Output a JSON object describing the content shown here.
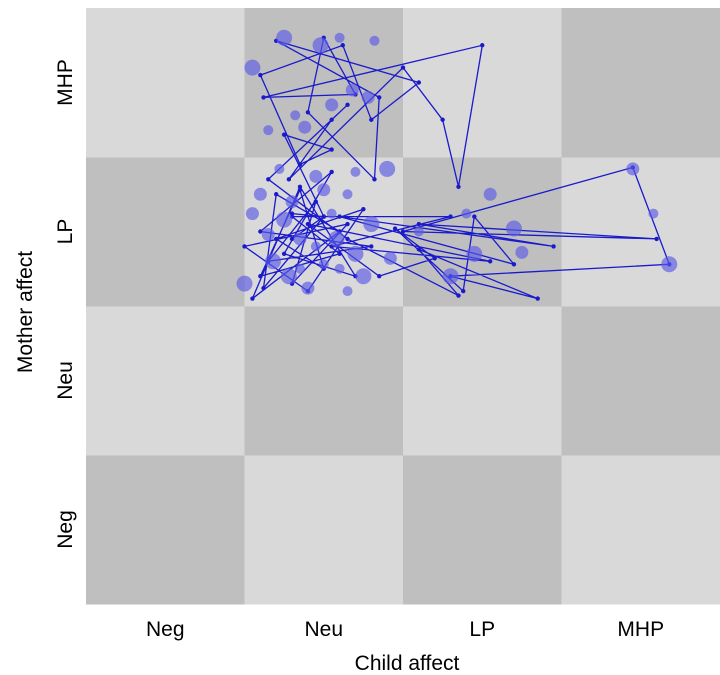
{
  "chart_data": {
    "type": "state-space-grid",
    "xlabel": "Child affect",
    "ylabel": "Mother affect",
    "x_categories": [
      "Neg",
      "Neu",
      "LP",
      "MHP"
    ],
    "y_categories": [
      "Neg",
      "Neu",
      "LP",
      "MHP"
    ],
    "xlim": [
      0,
      4
    ],
    "ylim": [
      0,
      4
    ],
    "grid": "checkerboard",
    "colors": {
      "cell_light": "#d9d9d9",
      "cell_dark": "#bfbfbf",
      "trajectory": "#1a1acc",
      "node": "#5a5ae6"
    },
    "trajectory": [
      [
        1.3,
        2.62
      ],
      [
        1.5,
        2.6
      ],
      [
        1.12,
        2.12
      ],
      [
        1.2,
        2.75
      ],
      [
        1.6,
        2.5
      ],
      [
        1.05,
        2.05
      ],
      [
        1.35,
        2.8
      ],
      [
        1.7,
        2.2
      ],
      [
        1.25,
        2.35
      ],
      [
        1.55,
        2.9
      ],
      [
        1.1,
        2.5
      ],
      [
        1.8,
        2.4
      ],
      [
        1.15,
        2.3
      ],
      [
        1.45,
        2.7
      ],
      [
        1.3,
        2.15
      ],
      [
        1.65,
        2.55
      ],
      [
        1.0,
        2.4
      ],
      [
        1.4,
        2.1
      ],
      [
        1.75,
        2.65
      ],
      [
        1.2,
        2.45
      ],
      [
        1.5,
        2.25
      ],
      [
        1.35,
        2.78
      ],
      [
        1.1,
        2.2
      ],
      [
        1.6,
        2.35
      ],
      [
        1.3,
        2.6
      ],
      [
        2.3,
        2.6
      ],
      [
        1.55,
        2.4
      ],
      [
        2.55,
        2.3
      ],
      [
        1.4,
        2.55
      ],
      [
        1.85,
        2.2
      ],
      [
        2.2,
        2.32
      ],
      [
        1.95,
        2.52
      ],
      [
        2.38,
        2.1
      ],
      [
        2.45,
        2.6
      ],
      [
        2.7,
        2.28
      ],
      [
        1.6,
        2.6
      ],
      [
        2.95,
        2.4
      ],
      [
        2.1,
        2.55
      ],
      [
        3.6,
        2.45
      ],
      [
        2.0,
        2.5
      ],
      [
        3.45,
        2.93
      ],
      [
        3.68,
        2.28
      ],
      [
        2.3,
        2.2
      ],
      [
        2.85,
        2.05
      ],
      [
        2.1,
        2.38
      ],
      [
        2.35,
        2.07
      ],
      [
        1.65,
        2.45
      ],
      [
        1.15,
        2.85
      ],
      [
        1.65,
        3.35
      ],
      [
        1.55,
        3.25
      ],
      [
        1.28,
        2.85
      ],
      [
        2.0,
        3.6
      ],
      [
        2.25,
        3.25
      ],
      [
        2.35,
        2.8
      ],
      [
        2.5,
        3.75
      ],
      [
        1.12,
        3.4
      ],
      [
        1.7,
        3.42
      ],
      [
        1.5,
        3.8
      ],
      [
        1.4,
        3.3
      ],
      [
        1.82,
        2.85
      ],
      [
        1.85,
        3.4
      ],
      [
        1.2,
        3.78
      ],
      [
        2.1,
        3.5
      ],
      [
        1.8,
        3.25
      ],
      [
        1.62,
        3.75
      ],
      [
        1.1,
        3.55
      ],
      [
        1.35,
        2.95
      ],
      [
        1.55,
        3.05
      ],
      [
        1.25,
        3.15
      ],
      [
        1.5,
        2.6
      ],
      [
        1.3,
        2.45
      ]
    ],
    "nodes": [
      [
        1.22,
        2.92
      ],
      [
        1.45,
        2.87
      ],
      [
        1.18,
        2.3
      ],
      [
        1.5,
        2.28
      ],
      [
        1.35,
        2.45
      ],
      [
        1.28,
        2.2
      ],
      [
        1.6,
        2.25
      ],
      [
        1.1,
        2.75
      ],
      [
        1.75,
        2.2
      ],
      [
        1.55,
        2.62
      ],
      [
        1.4,
        2.12
      ],
      [
        1.25,
        2.58
      ],
      [
        1.65,
        2.75
      ],
      [
        1.05,
        2.62
      ],
      [
        1.8,
        2.55
      ],
      [
        1.45,
        2.4
      ],
      [
        1.3,
        2.7
      ],
      [
        1.58,
        2.45
      ],
      [
        1.7,
        2.9
      ],
      [
        1.15,
        2.48
      ],
      [
        1.9,
        2.92
      ],
      [
        1.35,
        2.25
      ],
      [
        1.5,
        2.78
      ],
      [
        1.0,
        2.15
      ],
      [
        1.65,
        2.1
      ],
      [
        2.55,
        2.75
      ],
      [
        2.7,
        2.52
      ],
      [
        2.4,
        2.62
      ],
      [
        2.75,
        2.36
      ],
      [
        2.45,
        2.35
      ],
      [
        3.58,
        2.62
      ],
      [
        3.45,
        2.92
      ],
      [
        3.68,
        2.28
      ],
      [
        1.32,
        3.28
      ],
      [
        1.55,
        3.35
      ],
      [
        1.48,
        3.75
      ],
      [
        1.6,
        3.8
      ],
      [
        1.68,
        3.45
      ],
      [
        1.25,
        3.8
      ],
      [
        1.82,
        3.78
      ],
      [
        1.78,
        3.4
      ],
      [
        1.05,
        3.6
      ],
      [
        1.15,
        3.18
      ],
      [
        1.38,
        3.2
      ],
      [
        2.3,
        2.2
      ],
      [
        2.1,
        2.5
      ],
      [
        1.92,
        2.32
      ],
      [
        1.7,
        2.35
      ]
    ]
  },
  "labels": {
    "xlabel": "Child affect",
    "ylabel": "Mother affect"
  }
}
